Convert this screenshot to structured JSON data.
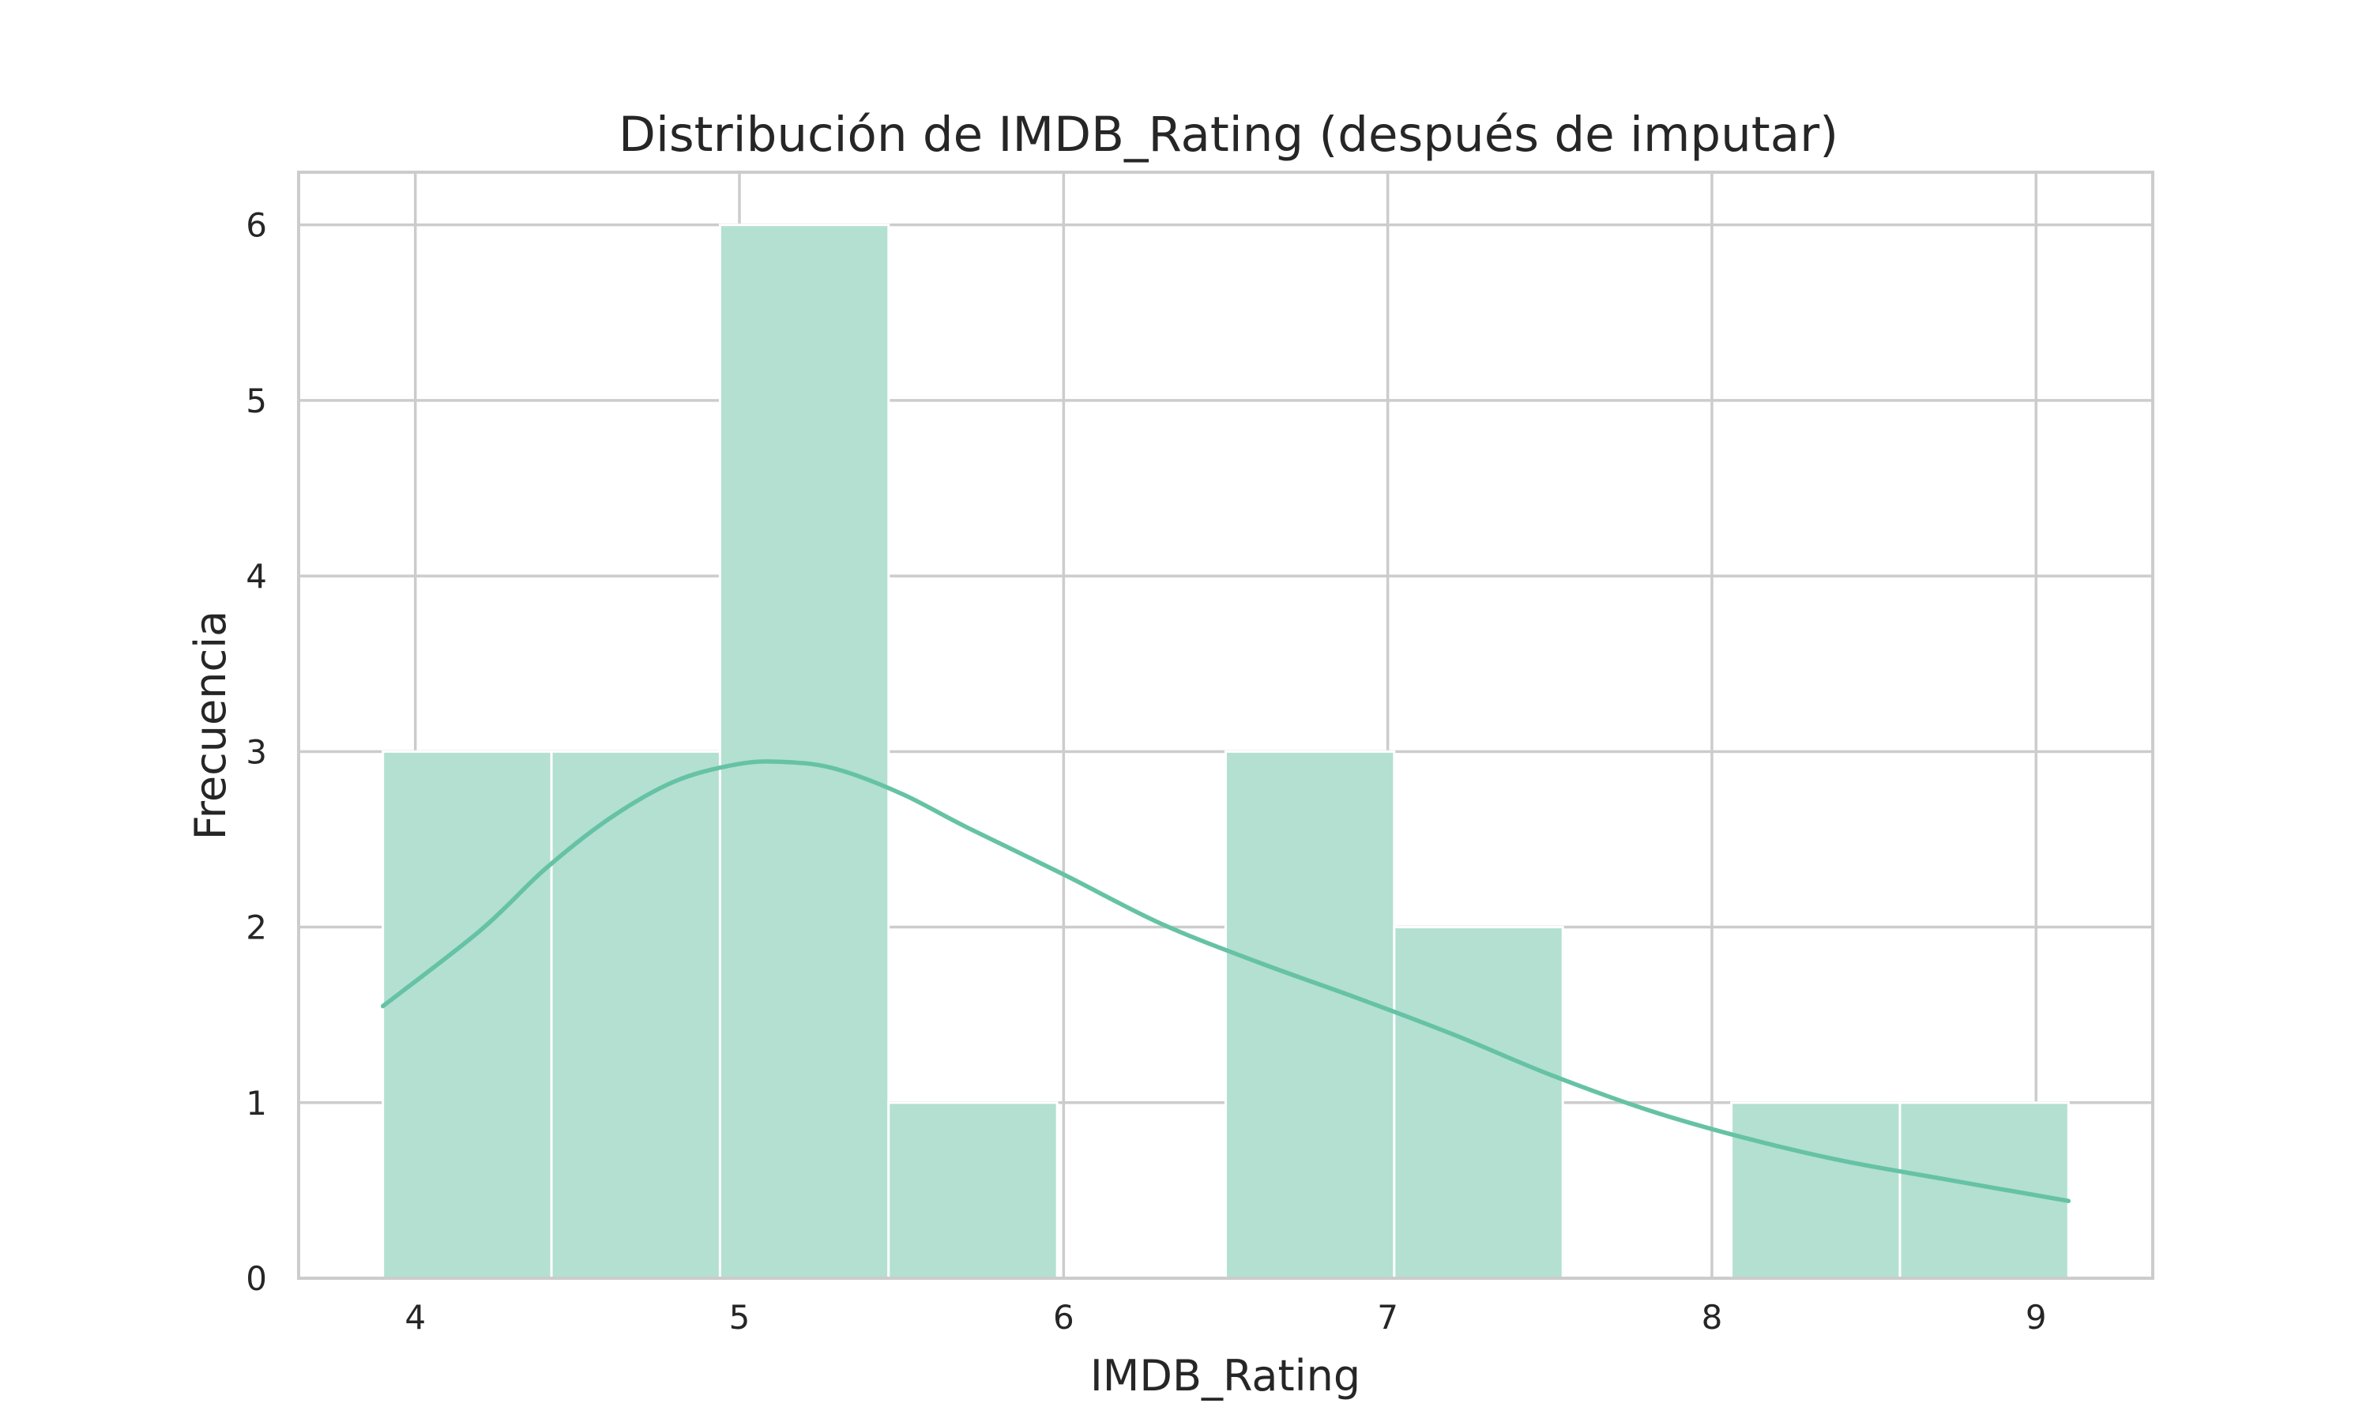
{
  "chart_data": {
    "type": "histogram",
    "title": "Distribución de IMDB_Rating (después de imputar)",
    "xlabel": "IMDB_Rating",
    "ylabel": "Frecuencia",
    "bins": [
      {
        "x0": 3.9,
        "x1": 4.42,
        "count": 3
      },
      {
        "x0": 4.42,
        "x1": 4.94,
        "count": 3
      },
      {
        "x0": 4.94,
        "x1": 5.46,
        "count": 6
      },
      {
        "x0": 5.46,
        "x1": 5.98,
        "count": 1
      },
      {
        "x0": 5.98,
        "x1": 6.5,
        "count": 0
      },
      {
        "x0": 6.5,
        "x1": 7.02,
        "count": 3
      },
      {
        "x0": 7.02,
        "x1": 7.54,
        "count": 2
      },
      {
        "x0": 7.54,
        "x1": 8.06,
        "count": 0
      },
      {
        "x0": 8.06,
        "x1": 8.58,
        "count": 1
      },
      {
        "x0": 8.58,
        "x1": 9.1,
        "count": 1
      }
    ],
    "kde": {
      "x": [
        3.9,
        4.2,
        4.4,
        4.6,
        4.8,
        5.0,
        5.15,
        5.3,
        5.5,
        5.7,
        6.0,
        6.3,
        6.6,
        6.9,
        7.2,
        7.5,
        7.8,
        8.1,
        8.4,
        8.7,
        9.1
      ],
      "y": [
        1.55,
        1.98,
        2.33,
        2.62,
        2.83,
        2.93,
        2.94,
        2.9,
        2.76,
        2.57,
        2.3,
        2.02,
        1.8,
        1.6,
        1.39,
        1.16,
        0.96,
        0.8,
        0.67,
        0.57,
        0.44
      ]
    },
    "xlim": [
      3.64,
      9.36
    ],
    "ylim": [
      0,
      6.3
    ],
    "xticks": [
      4,
      5,
      6,
      7,
      8,
      9
    ],
    "yticks": [
      0,
      1,
      2,
      3,
      4,
      5,
      6
    ],
    "grid": true,
    "colors": {
      "bar_fill": "#b3e0d1",
      "kde_line": "#66c2a5"
    }
  }
}
